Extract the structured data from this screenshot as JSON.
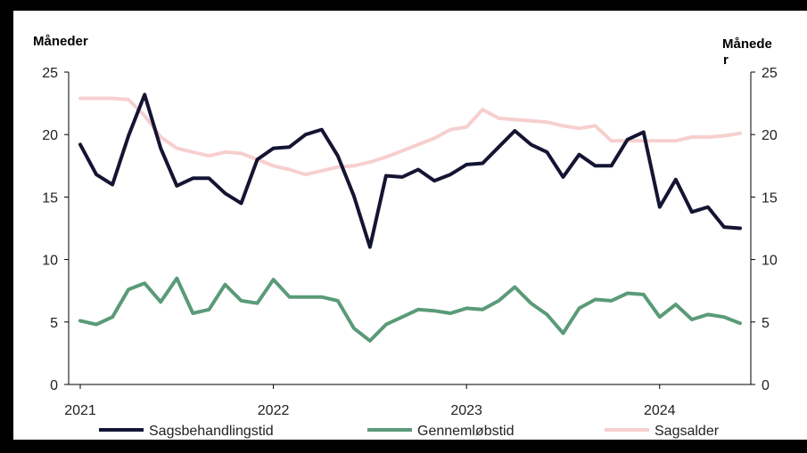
{
  "chart_data": {
    "type": "line",
    "left_axis_title": "Måneder",
    "right_axis_title_line1": "Månede",
    "right_axis_title_line2": "r",
    "yticks": [
      "0",
      "5",
      "10",
      "15",
      "20",
      "25"
    ],
    "xticks": [
      "2021",
      "2022",
      "2023",
      "2024"
    ],
    "ylim": [
      0,
      25
    ],
    "x_start": "2021-01",
    "x_end": "2024-06",
    "grid": false,
    "legend": "bottom",
    "series": [
      {
        "name": "Sagsbehandlingstid",
        "color": "#141433",
        "values": [
          19.2,
          16.8,
          16.0,
          19.9,
          23.2,
          18.9,
          15.9,
          16.5,
          16.5,
          15.3,
          14.5,
          18.0,
          18.9,
          19.0,
          20.0,
          20.4,
          18.3,
          15.1,
          11.0,
          16.7,
          16.6,
          17.2,
          16.3,
          16.8,
          17.6,
          17.7,
          19.0,
          20.3,
          19.2,
          18.6,
          16.6,
          18.4,
          17.5,
          17.5,
          19.6,
          20.2,
          14.2,
          16.4,
          13.8,
          14.2,
          12.6,
          12.5
        ]
      },
      {
        "name": "Gennemløbstid",
        "color": "#5a9a78",
        "values": [
          5.1,
          4.8,
          5.4,
          7.6,
          8.1,
          6.6,
          8.5,
          5.7,
          6.0,
          8.0,
          6.7,
          6.5,
          8.4,
          7.0,
          7.0,
          7.0,
          6.7,
          4.5,
          3.5,
          4.8,
          5.4,
          6.0,
          5.9,
          5.7,
          6.1,
          6.0,
          6.7,
          7.8,
          6.5,
          5.6,
          4.1,
          6.1,
          6.8,
          6.7,
          7.3,
          7.2,
          5.4,
          6.4,
          5.2,
          5.6,
          5.4,
          4.9
        ]
      },
      {
        "name": "Sagsalder",
        "color": "#f7cfcf",
        "values": [
          22.9,
          22.9,
          22.9,
          22.8,
          21.5,
          19.8,
          18.9,
          18.6,
          18.3,
          18.6,
          18.5,
          18.0,
          17.5,
          17.2,
          16.8,
          17.1,
          17.4,
          17.5,
          17.8,
          18.2,
          18.7,
          19.2,
          19.7,
          20.4,
          20.6,
          22.0,
          21.3,
          21.2,
          21.1,
          21.0,
          20.7,
          20.5,
          20.7,
          19.5,
          19.5,
          19.5,
          19.5,
          19.5,
          19.8,
          19.8,
          19.9,
          20.1
        ]
      }
    ]
  }
}
